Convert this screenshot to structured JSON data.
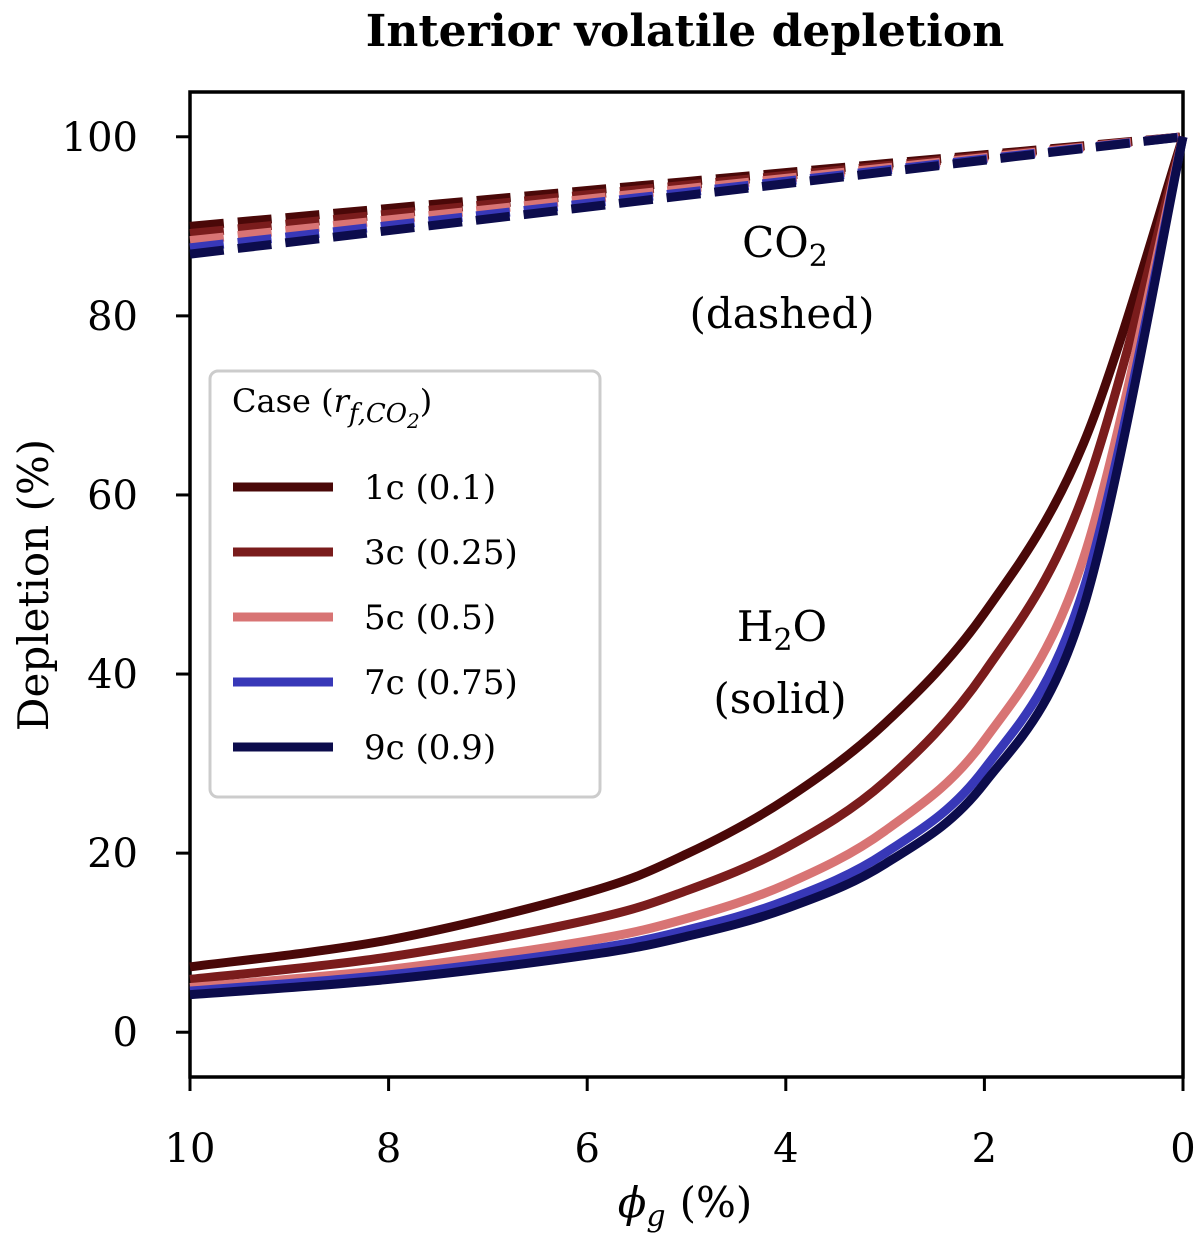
{
  "chart_data": {
    "type": "line",
    "title": "Interior volatile depletion",
    "xlabel": {
      "symbol": "ϕ",
      "subscript": "g",
      "unit": "(%)"
    },
    "ylabel": "Depletion (%)",
    "xlim": [
      10,
      0
    ],
    "ylim": [
      -5,
      105
    ],
    "x_ticks": [
      10,
      8,
      6,
      4,
      2,
      0
    ],
    "y_ticks": [
      0,
      20,
      40,
      60,
      80,
      100
    ],
    "x_tick_labels": [
      "10",
      "8",
      "6",
      "4",
      "2",
      "0"
    ],
    "y_tick_labels": [
      "0",
      "20",
      "40",
      "60",
      "80",
      "100"
    ],
    "grid": false,
    "legend": {
      "title_text": "Case (",
      "title_symbol": "r",
      "title_subscript": "f,CO",
      "title_subsub": "2",
      "title_close": ")",
      "placement": "center-left"
    },
    "annotations": [
      {
        "id": "co2",
        "formula_main": "CO",
        "formula_sub": "2",
        "note": "(dashed)"
      },
      {
        "id": "h2o",
        "formula_pre": "H",
        "formula_sub": "2",
        "formula_post": "O",
        "note": "(solid)"
      }
    ],
    "series": [
      {
        "name": "1c (0.1)",
        "color": "#4a0808",
        "co2": {
          "x": [
            10,
            0
          ],
          "y": [
            90.0,
            100
          ]
        },
        "h2o": {
          "x": [
            10,
            8,
            6,
            5,
            4,
            3,
            2,
            1,
            0
          ],
          "y": [
            7.3,
            10.3,
            15.6,
            19.9,
            26.0,
            34.5,
            46.8,
            65.8,
            100
          ]
        }
      },
      {
        "name": "3c (0.25)",
        "color": "#7a1c1c",
        "co2": {
          "x": [
            10,
            0
          ],
          "y": [
            89.2,
            100
          ]
        },
        "h2o": {
          "x": [
            10,
            8,
            6,
            5,
            4,
            3,
            2,
            1,
            0
          ],
          "y": [
            5.9,
            8.4,
            12.5,
            15.8,
            20.6,
            28.0,
            40.2,
            60.1,
            100
          ]
        }
      },
      {
        "name": "5c (0.5)",
        "color": "#d87474",
        "co2": {
          "x": [
            10,
            0
          ],
          "y": [
            88.4,
            100
          ]
        },
        "h2o": {
          "x": [
            10,
            8,
            6,
            5,
            4,
            3,
            2,
            1,
            0
          ],
          "y": [
            5.0,
            7.0,
            10.2,
            12.7,
            16.5,
            22.5,
            32.6,
            53.0,
            100
          ]
        }
      },
      {
        "name": "7c (0.75)",
        "color": "#3838b8",
        "co2": {
          "x": [
            10,
            0
          ],
          "y": [
            87.6,
            100
          ]
        },
        "h2o": {
          "x": [
            10,
            8,
            6,
            5,
            4,
            3,
            2,
            1,
            0
          ],
          "y": [
            4.6,
            6.4,
            9.2,
            11.4,
            14.7,
            20.0,
            29.4,
            49.5,
            100
          ]
        }
      },
      {
        "name": "9c (0.9)",
        "color": "#0c0c4c",
        "co2": {
          "x": [
            10,
            0
          ],
          "y": [
            86.9,
            100
          ]
        },
        "h2o": {
          "x": [
            10,
            8,
            6,
            5,
            4,
            3,
            2,
            1,
            0
          ],
          "y": [
            4.2,
            5.9,
            8.6,
            10.7,
            13.8,
            18.8,
            27.8,
            47.5,
            100
          ]
        }
      }
    ]
  }
}
